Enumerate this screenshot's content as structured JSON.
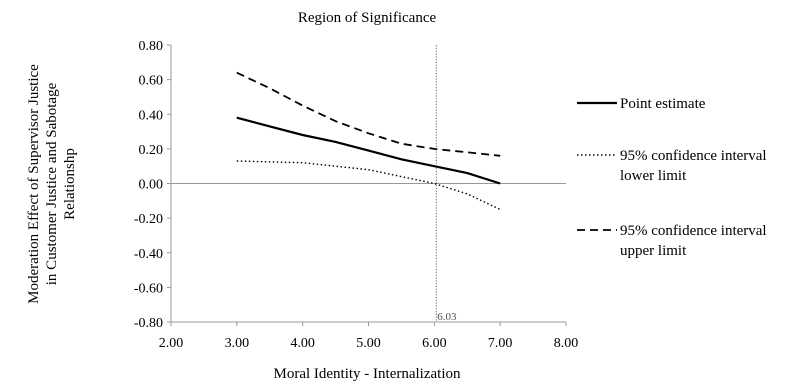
{
  "chart_data": {
    "type": "line",
    "title": "Region of Significance",
    "xlabel": "Moral Identity  - Internalization",
    "ylabel_lines": [
      "Moderation Effect of Supervisor Justice",
      "in Customer Justice and Sabotage",
      "Relationshp"
    ],
    "xlim": [
      2.0,
      8.0
    ],
    "ylim": [
      -0.8,
      0.8
    ],
    "x_ticks": [
      "2.00",
      "3.00",
      "4.00",
      "5.00",
      "6.00",
      "7.00",
      "8.00"
    ],
    "y_ticks": [
      "0.80",
      "0.60",
      "0.40",
      "0.20",
      "0.00",
      "-0.20",
      "-0.40",
      "-0.60",
      "-0.80"
    ],
    "x": [
      3.0,
      3.5,
      4.0,
      4.5,
      5.0,
      5.5,
      6.0,
      6.5,
      7.0
    ],
    "series": [
      {
        "name": "Point estimate",
        "style": "solid",
        "values": [
          0.38,
          0.33,
          0.28,
          0.24,
          0.19,
          0.14,
          0.1,
          0.06,
          0.0
        ]
      },
      {
        "name": "95% confidence interval lower limit",
        "style": "dotted",
        "values": [
          0.13,
          0.125,
          0.12,
          0.1,
          0.08,
          0.04,
          0.0,
          -0.06,
          -0.15
        ]
      },
      {
        "name": "95% confidence interval upper limit",
        "style": "dashed",
        "values": [
          0.64,
          0.55,
          0.45,
          0.36,
          0.29,
          0.23,
          0.2,
          0.18,
          0.16
        ]
      }
    ],
    "reference_line": {
      "x": 6.03,
      "label": "6.03"
    },
    "legend_position": "right",
    "grid": false
  }
}
